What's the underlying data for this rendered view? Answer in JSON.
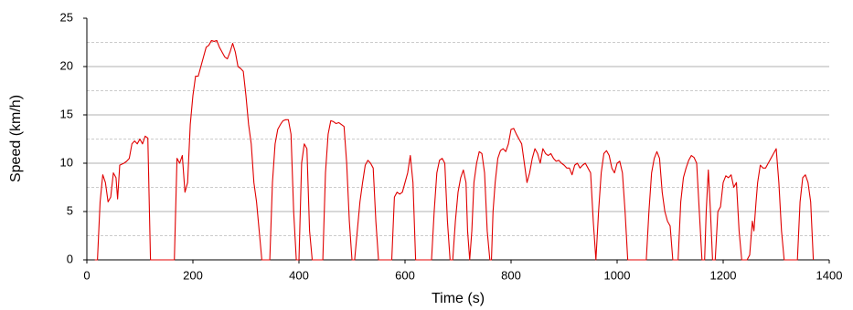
{
  "chart_data": {
    "type": "line",
    "x_label": "Time (s)",
    "y_label": "Speed (km/h)",
    "xlim": [
      0,
      1400
    ],
    "xticks": [
      0,
      200,
      400,
      600,
      800,
      1000,
      1200,
      1400
    ],
    "ylim": [
      0,
      25
    ],
    "yticks": [
      0,
      5,
      10,
      15,
      20,
      25
    ],
    "yminorticks": [
      2.5,
      7.5,
      12.5,
      17.5,
      22.5
    ],
    "grid": true,
    "series": [
      {
        "name": "Speed",
        "color": "#e00000",
        "x": [
          15,
          20,
          25,
          30,
          35,
          40,
          45,
          50,
          55,
          58,
          62,
          70,
          75,
          80,
          85,
          90,
          95,
          100,
          105,
          110,
          115,
          120,
          165,
          170,
          175,
          180,
          185,
          190,
          195,
          200,
          205,
          210,
          215,
          220,
          225,
          230,
          235,
          240,
          245,
          250,
          255,
          260,
          265,
          270,
          275,
          280,
          285,
          290,
          295,
          300,
          305,
          310,
          315,
          320,
          325,
          330,
          345,
          350,
          355,
          360,
          365,
          370,
          375,
          380,
          385,
          390,
          395,
          400,
          405,
          410,
          415,
          420,
          425,
          445,
          450,
          455,
          460,
          465,
          470,
          475,
          480,
          485,
          490,
          495,
          500,
          505,
          510,
          515,
          520,
          525,
          530,
          535,
          540,
          545,
          550,
          575,
          580,
          585,
          590,
          595,
          600,
          605,
          610,
          615,
          620,
          650,
          655,
          660,
          665,
          670,
          675,
          680,
          685,
          690,
          695,
          700,
          705,
          710,
          715,
          718,
          722,
          726,
          730,
          735,
          740,
          745,
          750,
          755,
          760,
          763,
          766,
          770,
          775,
          780,
          785,
          790,
          795,
          800,
          805,
          810,
          815,
          820,
          825,
          830,
          835,
          840,
          845,
          850,
          855,
          860,
          865,
          870,
          875,
          880,
          885,
          890,
          895,
          900,
          905,
          910,
          915,
          920,
          925,
          930,
          935,
          940,
          945,
          950,
          955,
          960,
          965,
          970,
          975,
          980,
          985,
          990,
          995,
          1000,
          1005,
          1010,
          1015,
          1020,
          1055,
          1060,
          1065,
          1070,
          1075,
          1080,
          1085,
          1090,
          1095,
          1100,
          1105,
          1115,
          1120,
          1125,
          1130,
          1135,
          1140,
          1145,
          1150,
          1155,
          1160,
          1165,
          1168,
          1172,
          1176,
          1180,
          1185,
          1190,
          1195,
          1200,
          1205,
          1210,
          1215,
          1220,
          1225,
          1230,
          1235,
          1245,
          1250,
          1255,
          1258,
          1262,
          1265,
          1270,
          1275,
          1280,
          1285,
          1290,
          1295,
          1300,
          1305,
          1310,
          1315,
          1340,
          1345,
          1350,
          1355,
          1360,
          1365,
          1370
        ],
        "values": [
          0,
          0,
          6,
          8.8,
          8,
          6,
          6.5,
          9,
          8.5,
          6.3,
          9.8,
          10,
          10.2,
          10.5,
          12,
          12.3,
          12,
          12.5,
          12,
          12.8,
          12.6,
          0,
          0,
          10.5,
          10,
          10.8,
          7,
          8,
          14,
          17,
          19,
          19,
          20,
          21,
          22,
          22.2,
          22.7,
          22.6,
          22.7,
          22,
          21.5,
          21,
          20.8,
          21.5,
          22.4,
          21.5,
          20,
          19.8,
          19.5,
          17,
          14,
          12,
          8,
          6,
          3,
          0,
          0,
          8,
          12,
          13.5,
          14,
          14.4,
          14.5,
          14.5,
          13,
          5,
          0,
          0,
          10,
          12,
          11.5,
          3,
          0,
          0,
          9,
          13,
          14.4,
          14.3,
          14.1,
          14.2,
          14,
          13.8,
          10,
          4,
          0,
          0,
          3,
          6,
          8,
          9.8,
          10.3,
          10,
          9.5,
          4,
          0,
          0,
          6.5,
          7,
          6.8,
          7,
          8,
          9,
          10.8,
          8,
          0,
          0,
          5,
          9,
          10.3,
          10.5,
          10,
          4,
          0,
          0,
          4,
          7,
          8.5,
          9.3,
          8,
          3,
          0,
          3,
          8,
          10,
          11.2,
          11,
          9,
          3,
          0,
          0,
          5,
          8,
          10.5,
          11.3,
          11.5,
          11.2,
          12,
          13.5,
          13.6,
          13,
          12.5,
          12,
          10,
          8,
          9,
          10.5,
          11.5,
          11,
          10,
          11.5,
          11,
          10.8,
          11,
          10.5,
          10.2,
          10.3,
          10,
          9.8,
          9.5,
          9.5,
          8.8,
          9.8,
          10,
          9.5,
          9.8,
          10,
          9.5,
          9,
          4,
          0,
          5,
          9,
          11,
          11.3,
          10.8,
          9.5,
          9,
          10,
          10.2,
          9,
          5,
          0,
          0,
          5,
          9,
          10.5,
          11.2,
          10.5,
          7,
          5,
          4,
          3.5,
          0,
          0,
          6,
          8.5,
          9.5,
          10.3,
          10.8,
          10.6,
          10,
          5,
          0,
          0,
          5,
          9.3,
          5,
          0,
          0,
          5,
          5.5,
          8,
          8.7,
          8.5,
          8.8,
          7.5,
          8,
          3,
          0,
          0,
          0.5,
          4,
          3,
          6,
          8,
          9.8,
          9.5,
          9.5,
          10,
          10.5,
          11,
          11.5,
          8,
          3,
          0,
          0,
          6,
          8.5,
          8.8,
          8,
          6,
          0
        ]
      }
    ]
  }
}
